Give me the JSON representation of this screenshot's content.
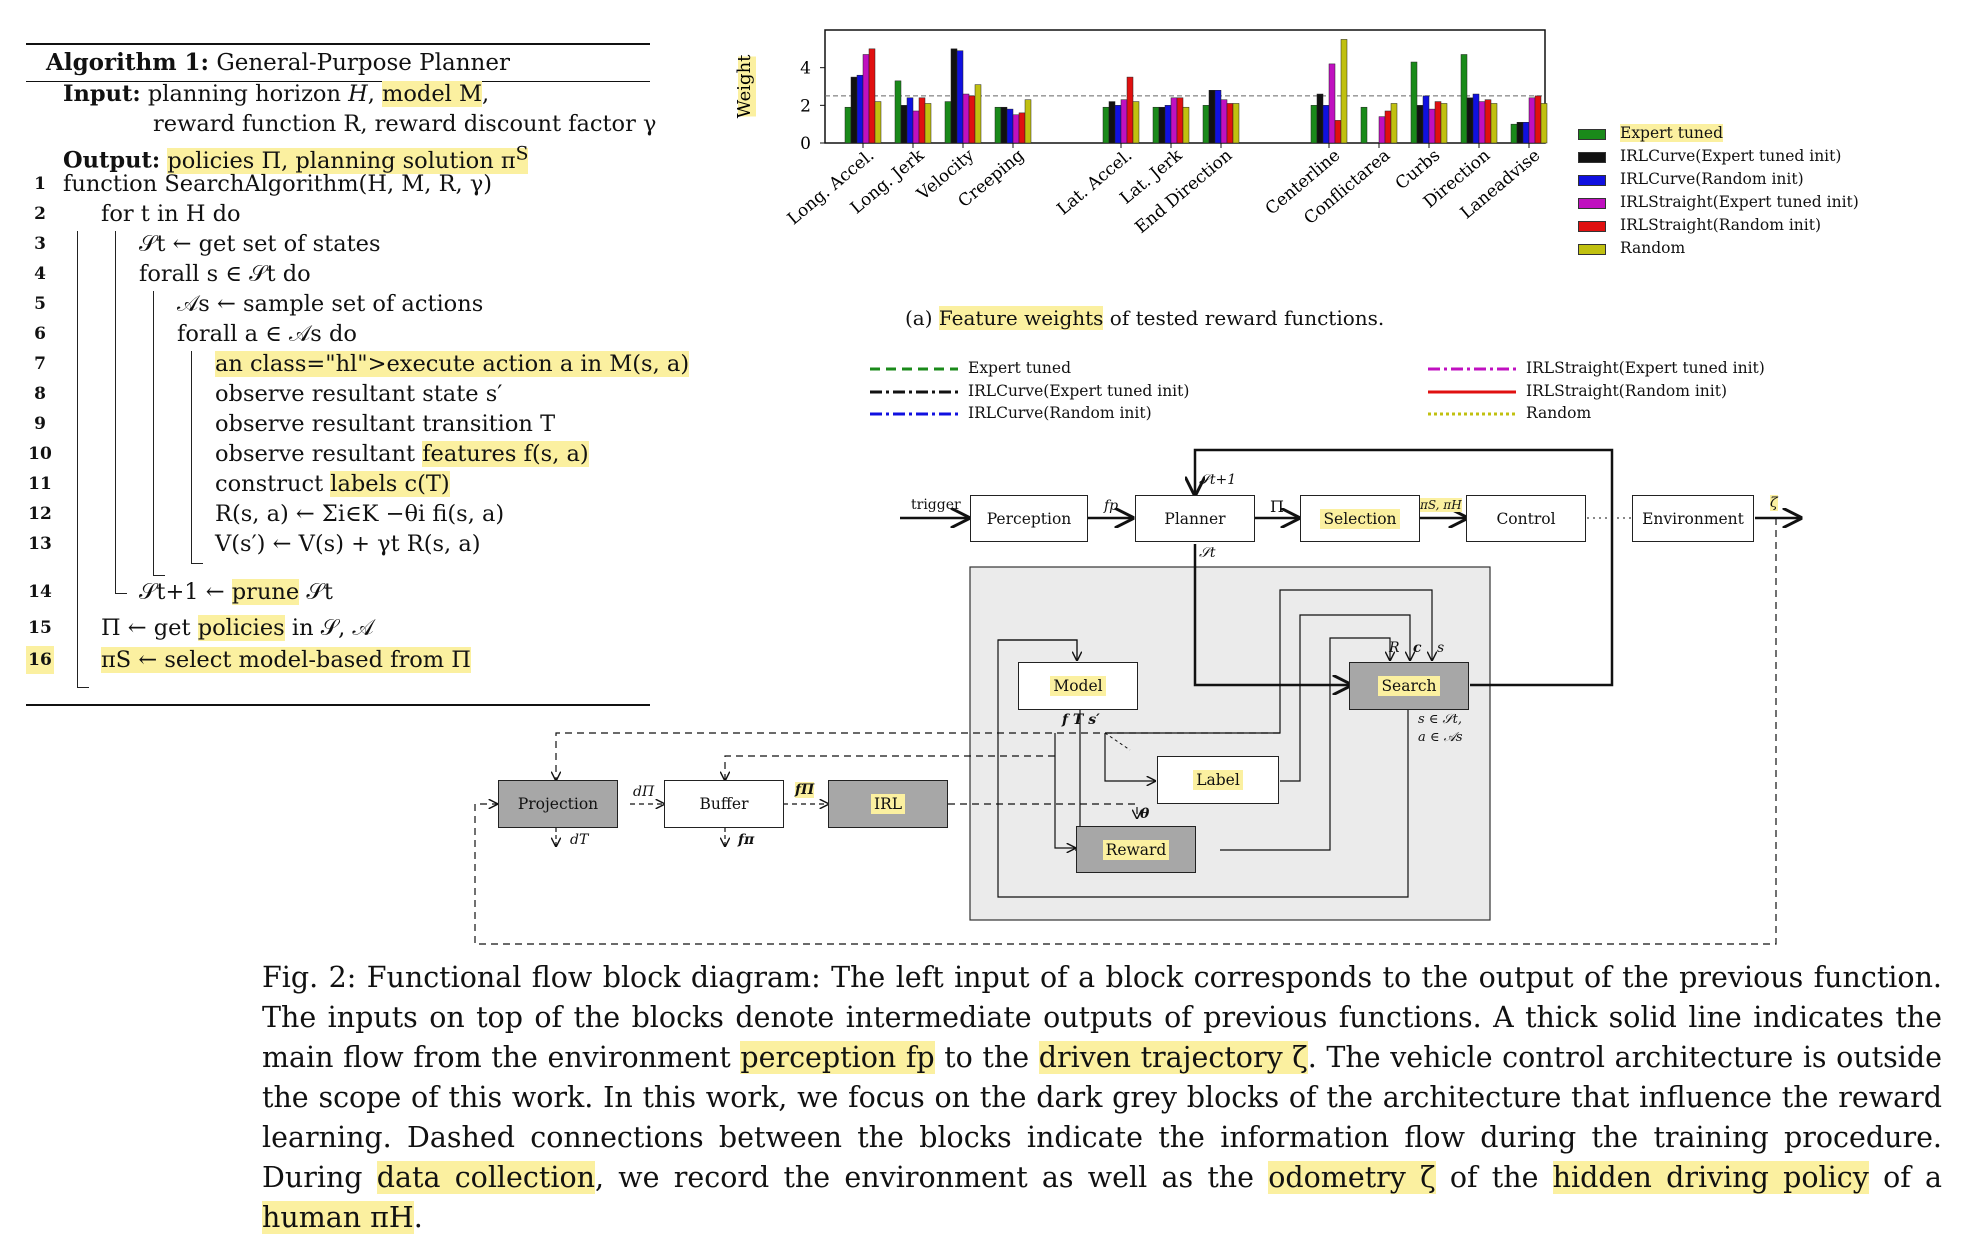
{
  "algorithm": {
    "title_bold": "Algorithm 1:",
    "title_rest": " General-Purpose Planner",
    "input_label": "Input:",
    "input_line1a": " planning horizon ",
    "input_H": "H",
    "input_line1b": ", ",
    "input_model": "model M",
    "input_line1c": ",",
    "input_line2": "reward function R, reward discount factor γ",
    "output_label": "Output:",
    "output_text": "policies Π, planning solution π",
    "output_sup": "S",
    "lines": [
      {
        "no": "1",
        "text": "function SearchAlgorithm(H, M, R, γ)"
      },
      {
        "no": "2",
        "text": "for t in H do"
      },
      {
        "no": "3",
        "text": "𝒮t ← get set of states"
      },
      {
        "no": "4",
        "text": "forall s ∈ 𝒮t do"
      },
      {
        "no": "5",
        "text": "𝒜s ← sample set of actions"
      },
      {
        "no": "6",
        "text": "forall a ∈ 𝒜s do"
      },
      {
        "no": "7",
        "text": "execute action a in M(s, a)"
      },
      {
        "no": "8",
        "text": "observe resultant state s′"
      },
      {
        "no": "9",
        "text": "observe resultant transition T"
      },
      {
        "no": "10",
        "text": "observe resultant features f(s, a)"
      },
      {
        "no": "11",
        "text": "construct labels c(T)"
      },
      {
        "no": "12",
        "text": "R(s, a) ← Σi∈K −θi fi(s, a)"
      },
      {
        "no": "13",
        "text": "V(s′) ← V(s) + γt R(s, a)"
      },
      {
        "no": "14",
        "text": "𝒮t+1 ← prune 𝒮t"
      },
      {
        "no": "15",
        "text": "Π ← get policies in 𝒮, 𝒜"
      },
      {
        "no": "16",
        "text": "πS ← select model-based from Π"
      }
    ]
  },
  "chart_data": {
    "type": "bar",
    "ylabel": "Weight",
    "ylim": [
      0,
      6
    ],
    "yticks": [
      "0",
      "2",
      "4"
    ],
    "reference_line": 2.5,
    "categories": [
      "Long. Accel.",
      "Long. Jerk",
      "Velocity",
      "Creeping",
      "Lat. Accel.",
      "Lat. Jerk",
      "End Direction",
      "Centerline",
      "Conflictarea",
      "Curbs",
      "Direction",
      "Laneadvise"
    ],
    "groups": [
      [
        0,
        1,
        2,
        3
      ],
      [
        4,
        5,
        6
      ],
      [
        7,
        8,
        9,
        10,
        11
      ]
    ],
    "series": [
      {
        "name": "Expert tuned",
        "color": "#1a8a1a",
        "values": [
          1.9,
          3.3,
          2.2,
          1.9,
          1.9,
          1.9,
          2.0,
          2.0,
          1.9,
          4.3,
          4.7,
          1.0
        ]
      },
      {
        "name": "IRLCurve(Expert tuned init)",
        "color": "#111111",
        "values": [
          3.5,
          2.0,
          5.0,
          1.9,
          2.2,
          1.9,
          2.8,
          2.6,
          0.0,
          2.0,
          2.4,
          1.1
        ]
      },
      {
        "name": "IRLCurve(Random init)",
        "color": "#1010e0",
        "values": [
          3.6,
          2.4,
          4.9,
          1.8,
          2.0,
          2.0,
          2.8,
          2.0,
          0.0,
          2.5,
          2.6,
          1.1
        ]
      },
      {
        "name": "IRLStraight(Expert tuned init)",
        "color": "#c010c0",
        "values": [
          4.7,
          1.7,
          2.6,
          1.5,
          2.3,
          2.4,
          2.3,
          4.2,
          1.4,
          1.8,
          2.2,
          2.4
        ]
      },
      {
        "name": "IRLStraight(Random init)",
        "color": "#e01010",
        "values": [
          5.0,
          2.4,
          2.5,
          1.6,
          3.5,
          2.4,
          2.1,
          1.2,
          1.7,
          2.2,
          2.3,
          2.5
        ]
      },
      {
        "name": "Random",
        "color": "#c0c010",
        "values": [
          2.2,
          2.1,
          3.1,
          2.3,
          2.2,
          1.9,
          2.1,
          5.5,
          2.1,
          2.1,
          2.1,
          2.1
        ]
      }
    ],
    "legend_position": "right"
  },
  "chart_legend": [
    "Expert tuned",
    "IRLCurve(Expert tuned init)",
    "IRLCurve(Random init)",
    "IRLStraight(Expert tuned init)",
    "IRLStraight(Random init)",
    "Random"
  ],
  "subcaption": {
    "prefix": "(a) ",
    "highlight": "Feature weights",
    "suffix": " of tested reward functions."
  },
  "line_legend": [
    {
      "label": "Expert tuned",
      "color": "#1a8a1a",
      "dash": "10,6"
    },
    {
      "label": "IRLCurve(Expert tuned init)",
      "color": "#111111",
      "dash": "12,4,3,4"
    },
    {
      "label": "IRLCurve(Random init)",
      "color": "#1010e0",
      "dash": "12,4,3,4"
    },
    {
      "label": "IRLStraight(Expert tuned init)",
      "color": "#c010c0",
      "dash": "12,4,3,4"
    },
    {
      "label": "IRLStraight(Random init)",
      "color": "#e01010",
      "dash": ""
    },
    {
      "label": "Random",
      "color": "#c0c010",
      "dash": "3,3"
    }
  ],
  "diagram": {
    "trigger": "trigger",
    "perception": "Perception",
    "fp": "fp",
    "planner": "Planner",
    "pi": "Π",
    "selection": "Selection",
    "control": "Control",
    "environment": "Environment",
    "zeta": "ζ",
    "s_t1": "𝒮t+1",
    "s_t": "𝒮t",
    "pis_pih": "πS, πH",
    "model": "Model",
    "search": "Search",
    "label": "Label",
    "reward": "Reward",
    "projection": "Projection",
    "buffer": "Buffer",
    "irl": "IRL",
    "d_pi": "dΠ",
    "d_T": "dT",
    "f_pi": "fΠ",
    "f_pistar": "fπ",
    "theta": "θ",
    "R": "R",
    "c": "c",
    "s": "s",
    "fTs": "f  T  s′",
    "search_note1": "s ∈ 𝒮t,",
    "search_note2": "a ∈ 𝒜s"
  },
  "caption": {
    "p1": "Fig. 2: Functional flow block diagram: The left input of a block corresponds to the output of the previous function. The inputs on top of the blocks denote intermediate outputs of previous functions. A thick solid line indicates the main flow from the environment ",
    "h1": "perception fp",
    "p2": " to the ",
    "h2": "driven trajectory ζ",
    "p3": ". The vehicle control architecture is outside the scope of this work. In this work, we focus on the dark grey blocks of the architecture that influence the reward learning. Dashed connections between the blocks indicate the information flow during the training procedure. During ",
    "h3": "data collection",
    "p4": ", we record the environment as well as the ",
    "h4": "odometry ζ",
    "p5": " of the ",
    "h5": "hidden driving policy",
    "p6": " of a ",
    "h6": "human πH",
    "p7": "."
  }
}
